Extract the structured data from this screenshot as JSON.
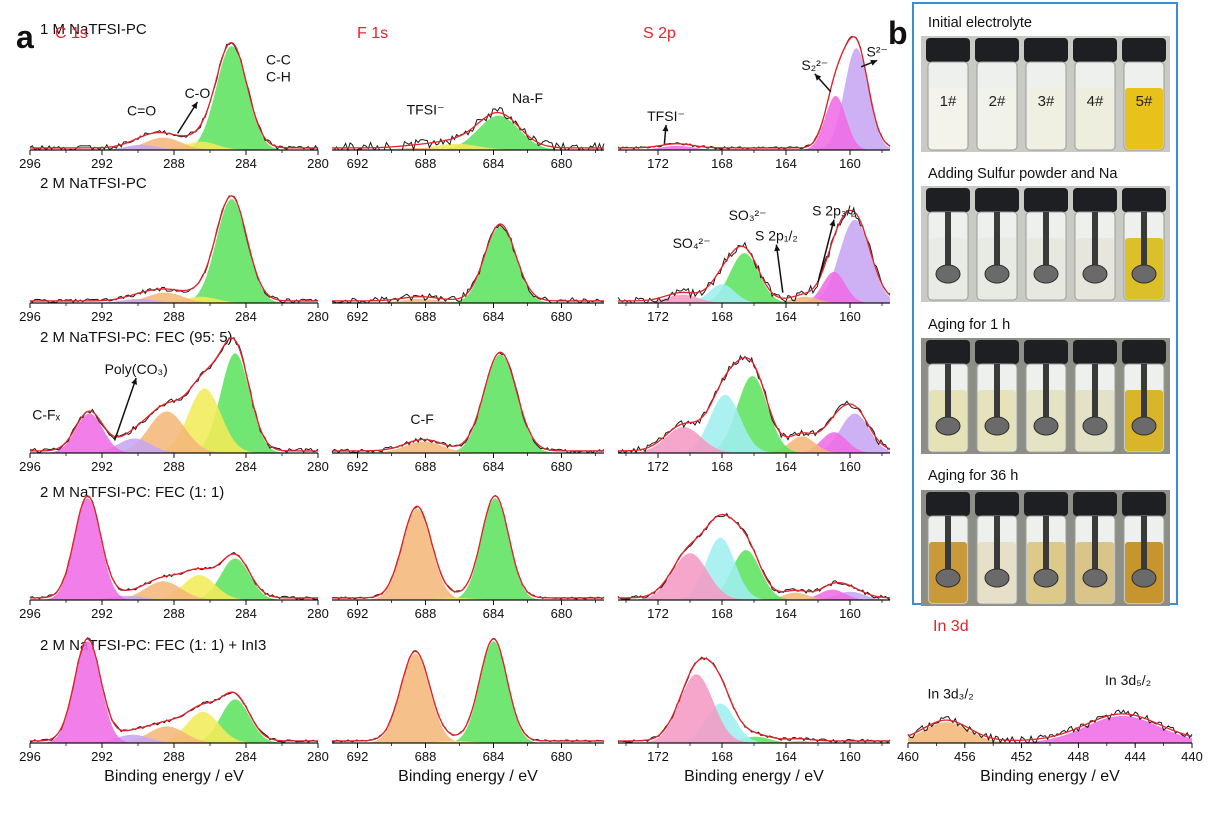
{
  "figure": {
    "label_a": "a",
    "label_b": "b",
    "xlabel": "Binding energy / eV",
    "colors": {
      "fit": "#e6232a",
      "raw": "#1a1a1a",
      "title": "#e6232a",
      "panel_b_border": "#3b8ed3"
    }
  },
  "rows": [
    {
      "name": "1 M NaTFSI-PC"
    },
    {
      "name": "2 M NaTFSI-PC"
    },
    {
      "name": "2 M NaTFSI-PC: FEC (95: 5)"
    },
    {
      "name": "2 M NaTFSI-PC: FEC (1: 1)"
    },
    {
      "name": "2 M NaTFSI-PC: FEC (1: 1) + InI3"
    }
  ],
  "chart_data": [
    {
      "type": "line",
      "title": "C 1s",
      "row": 0,
      "col": 0,
      "xlim": [
        296,
        280
      ],
      "xticks": [
        "296",
        "292",
        "288",
        "284",
        "280"
      ],
      "xlabel": "",
      "components": [
        {
          "center": 284.8,
          "height": 1.0,
          "width": 0.85,
          "color": "#5fe35f"
        },
        {
          "center": 286.5,
          "height": 0.08,
          "width": 0.9,
          "color": "#f2ec5a"
        },
        {
          "center": 288.6,
          "height": 0.12,
          "width": 1.0,
          "color": "#f5b77a"
        },
        {
          "center": 289.8,
          "height": 0.05,
          "width": 0.9,
          "color": "#c7a6f2"
        }
      ],
      "noise": 0.025,
      "annotations": [
        {
          "text": "C=O",
          "x": 289.8,
          "y": 0.33
        },
        {
          "text": "C-O",
          "x": 286.7,
          "y": 0.5,
          "arrow_to": [
            287.8,
            0.16
          ]
        },
        {
          "text": "C-C",
          "x": 282.2,
          "y": 0.82
        },
        {
          "text": "C-H",
          "x": 282.2,
          "y": 0.66
        }
      ]
    },
    {
      "type": "line",
      "title": "F 1s",
      "row": 0,
      "col": 1,
      "xlim": [
        693.5,
        677.5
      ],
      "xticks": [
        "692",
        "688",
        "684",
        "680"
      ],
      "xlabel": "",
      "components": [
        {
          "center": 683.7,
          "height": 0.33,
          "width": 1.2,
          "color": "#5fe35f"
        },
        {
          "center": 686.2,
          "height": 0.06,
          "width": 1.3,
          "color": "#f2ec5a"
        },
        {
          "center": 688.5,
          "height": 0.02,
          "width": 1.2,
          "color": "#f5b77a"
        }
      ],
      "noise": 0.05,
      "annotations": [
        {
          "text": "TFSI⁻",
          "x": 688.0,
          "y": 0.34
        },
        {
          "text": "Na-F",
          "x": 682.0,
          "y": 0.45
        }
      ]
    },
    {
      "type": "line",
      "title": "S 2p",
      "row": 0,
      "col": 2,
      "xlim": [
        174.5,
        157.5
      ],
      "xticks": [
        "172",
        "168",
        "164",
        "160"
      ],
      "xlabel": "",
      "components": [
        {
          "center": 159.6,
          "height": 0.98,
          "width": 0.75,
          "color": "#c7a6f2"
        },
        {
          "center": 160.9,
          "height": 0.52,
          "width": 0.65,
          "color": "#ef6ce6"
        },
        {
          "center": 170.8,
          "height": 0.04,
          "width": 1.0,
          "color": "#ef6ce6"
        }
      ],
      "noise": 0.012,
      "annotations": [
        {
          "text": "TFSI⁻",
          "x": 171.5,
          "y": 0.28,
          "arrow_to": [
            171.6,
            0.06
          ]
        },
        {
          "text": "S₂²⁻",
          "x": 162.2,
          "y": 0.77,
          "arrow_to": [
            161.2,
            0.56
          ]
        },
        {
          "text": "S²⁻",
          "x": 158.3,
          "y": 0.9,
          "arrow_to": [
            159.3,
            0.8
          ]
        }
      ]
    },
    {
      "type": "line",
      "title": "",
      "row": 1,
      "col": 0,
      "xlim": [
        296,
        280
      ],
      "xticks": [
        "296",
        "292",
        "288",
        "284",
        "280"
      ],
      "xlabel": "",
      "components": [
        {
          "center": 284.8,
          "height": 1.0,
          "width": 0.85,
          "color": "#5fe35f"
        },
        {
          "center": 286.5,
          "height": 0.06,
          "width": 0.9,
          "color": "#f2ec5a"
        },
        {
          "center": 288.5,
          "height": 0.1,
          "width": 1.0,
          "color": "#f5b77a"
        },
        {
          "center": 290.0,
          "height": 0.04,
          "width": 0.9,
          "color": "#c7a6f2"
        }
      ],
      "noise": 0.02,
      "annotations": []
    },
    {
      "type": "line",
      "title": "",
      "row": 1,
      "col": 1,
      "xlim": [
        693.5,
        677.5
      ],
      "xticks": [
        "692",
        "688",
        "684",
        "680"
      ],
      "xlabel": "",
      "components": [
        {
          "center": 683.6,
          "height": 0.74,
          "width": 0.9,
          "color": "#5fe35f"
        },
        {
          "center": 688.3,
          "height": 0.04,
          "width": 1.1,
          "color": "#f5b77a"
        }
      ],
      "noise": 0.035,
      "annotations": []
    },
    {
      "type": "line",
      "title": "",
      "row": 1,
      "col": 2,
      "xlim": [
        174.5,
        157.5
      ],
      "xticks": [
        "172",
        "168",
        "164",
        "160"
      ],
      "xlabel": "",
      "components": [
        {
          "center": 159.7,
          "height": 0.8,
          "width": 0.95,
          "color": "#c7a6f2"
        },
        {
          "center": 161.0,
          "height": 0.3,
          "width": 0.7,
          "color": "#ef6ce6"
        },
        {
          "center": 162.8,
          "height": 0.06,
          "width": 0.8,
          "color": "#f5b77a"
        },
        {
          "center": 166.6,
          "height": 0.48,
          "width": 0.9,
          "color": "#5fe35f"
        },
        {
          "center": 168.0,
          "height": 0.18,
          "width": 0.8,
          "color": "#9feff0"
        },
        {
          "center": 170.5,
          "height": 0.08,
          "width": 1.0,
          "color": "#f59ac4"
        }
      ],
      "noise": 0.045,
      "annotations": [
        {
          "text": "SO₄²⁻",
          "x": 169.9,
          "y": 0.53
        },
        {
          "text": "SO₃²⁻",
          "x": 166.4,
          "y": 0.8
        },
        {
          "text": "S 2p₁/₂",
          "x": 164.6,
          "y": 0.6,
          "arrow_to": [
            164.2,
            0.1
          ]
        },
        {
          "text": "S 2p₃/₂",
          "x": 161.0,
          "y": 0.84,
          "arrow_to": [
            162.0,
            0.2
          ]
        }
      ]
    },
    {
      "type": "line",
      "title": "",
      "row": 2,
      "col": 0,
      "xlim": [
        296,
        280
      ],
      "xticks": [
        "296",
        "292",
        "288",
        "284",
        "280"
      ],
      "xlabel": "",
      "components": [
        {
          "center": 284.6,
          "height": 0.96,
          "width": 0.8,
          "color": "#5fe35f"
        },
        {
          "center": 286.3,
          "height": 0.62,
          "width": 0.9,
          "color": "#f2ec5a"
        },
        {
          "center": 288.4,
          "height": 0.4,
          "width": 1.0,
          "color": "#f5b77a"
        },
        {
          "center": 290.2,
          "height": 0.14,
          "width": 0.9,
          "color": "#c7a6f2"
        },
        {
          "center": 292.7,
          "height": 0.38,
          "width": 0.75,
          "color": "#ef6ce6"
        }
      ],
      "noise": 0.025,
      "annotations": [
        {
          "text": "C-Fₓ",
          "x": 295.1,
          "y": 0.32
        },
        {
          "text": "Poly(CO₃)",
          "x": 290.1,
          "y": 0.76,
          "arrow_to": [
            291.3,
            0.12
          ]
        }
      ]
    },
    {
      "type": "line",
      "title": "",
      "row": 2,
      "col": 1,
      "xlim": [
        693.5,
        677.5
      ],
      "xticks": [
        "692",
        "688",
        "684",
        "680"
      ],
      "xlabel": "",
      "components": [
        {
          "center": 683.6,
          "height": 0.95,
          "width": 0.95,
          "color": "#5fe35f"
        },
        {
          "center": 688.1,
          "height": 0.11,
          "width": 1.1,
          "color": "#f5b77a"
        }
      ],
      "noise": 0.02,
      "annotations": [
        {
          "text": "C-F",
          "x": 688.2,
          "y": 0.28
        }
      ]
    },
    {
      "type": "line",
      "title": "",
      "row": 2,
      "col": 2,
      "xlim": [
        174.5,
        157.5
      ],
      "xticks": [
        "172",
        "168",
        "164",
        "160"
      ],
      "xlabel": "",
      "components": [
        {
          "center": 159.7,
          "height": 0.38,
          "width": 0.9,
          "color": "#c7a6f2"
        },
        {
          "center": 161.0,
          "height": 0.2,
          "width": 0.8,
          "color": "#ef6ce6"
        },
        {
          "center": 163.0,
          "height": 0.16,
          "width": 0.8,
          "color": "#f5b77a"
        },
        {
          "center": 166.1,
          "height": 0.74,
          "width": 0.95,
          "color": "#5fe35f"
        },
        {
          "center": 167.8,
          "height": 0.56,
          "width": 0.95,
          "color": "#9feff0"
        },
        {
          "center": 170.4,
          "height": 0.25,
          "width": 1.1,
          "color": "#f59ac4"
        }
      ],
      "noise": 0.035,
      "annotations": []
    },
    {
      "type": "line",
      "title": "",
      "row": 3,
      "col": 0,
      "xlim": [
        296,
        280
      ],
      "xticks": [
        "296",
        "292",
        "288",
        "284",
        "280"
      ],
      "xlabel": "",
      "components": [
        {
          "center": 284.6,
          "height": 0.4,
          "width": 0.8,
          "color": "#5fe35f"
        },
        {
          "center": 286.6,
          "height": 0.24,
          "width": 0.9,
          "color": "#f2ec5a"
        },
        {
          "center": 288.6,
          "height": 0.18,
          "width": 1.0,
          "color": "#f5b77a"
        },
        {
          "center": 290.6,
          "height": 0.04,
          "width": 0.9,
          "color": "#c7a6f2"
        },
        {
          "center": 292.8,
          "height": 0.98,
          "width": 0.72,
          "color": "#ef6ce6"
        }
      ],
      "noise": 0.015,
      "annotations": []
    },
    {
      "type": "line",
      "title": "",
      "row": 3,
      "col": 1,
      "xlim": [
        693.5,
        677.5
      ],
      "xticks": [
        "692",
        "688",
        "684",
        "680"
      ],
      "xlabel": "",
      "components": [
        {
          "center": 683.9,
          "height": 0.98,
          "width": 0.8,
          "color": "#5fe35f"
        },
        {
          "center": 688.5,
          "height": 0.88,
          "width": 0.85,
          "color": "#f5b77a"
        },
        {
          "center": 686.2,
          "height": 0.02,
          "width": 1.0,
          "color": "#f2ec5a"
        }
      ],
      "noise": 0.01,
      "annotations": []
    },
    {
      "type": "line",
      "title": "",
      "row": 3,
      "col": 2,
      "xlim": [
        174.5,
        157.5
      ],
      "xticks": [
        "172",
        "168",
        "164",
        "160"
      ],
      "xlabel": "",
      "components": [
        {
          "center": 160.0,
          "height": 0.08,
          "width": 0.9,
          "color": "#c7a6f2"
        },
        {
          "center": 161.1,
          "height": 0.1,
          "width": 0.8,
          "color": "#ef6ce6"
        },
        {
          "center": 163.4,
          "height": 0.07,
          "width": 0.8,
          "color": "#f5b77a"
        },
        {
          "center": 166.5,
          "height": 0.48,
          "width": 0.9,
          "color": "#5fe35f"
        },
        {
          "center": 168.1,
          "height": 0.6,
          "width": 0.9,
          "color": "#9feff0"
        },
        {
          "center": 170.0,
          "height": 0.45,
          "width": 1.1,
          "color": "#f59ac4"
        }
      ],
      "noise": 0.02,
      "annotations": []
    },
    {
      "type": "line",
      "title": "",
      "row": 4,
      "col": 0,
      "xlim": [
        296,
        280
      ],
      "xticks": [
        "296",
        "292",
        "288",
        "284",
        "280"
      ],
      "xlabel": "Binding energy / eV",
      "components": [
        {
          "center": 284.6,
          "height": 0.42,
          "width": 0.8,
          "color": "#5fe35f"
        },
        {
          "center": 286.4,
          "height": 0.3,
          "width": 0.9,
          "color": "#f2ec5a"
        },
        {
          "center": 288.4,
          "height": 0.16,
          "width": 1.0,
          "color": "#f5b77a"
        },
        {
          "center": 290.3,
          "height": 0.08,
          "width": 0.9,
          "color": "#c7a6f2"
        },
        {
          "center": 292.8,
          "height": 0.98,
          "width": 0.72,
          "color": "#ef6ce6"
        }
      ],
      "noise": 0.015,
      "annotations": []
    },
    {
      "type": "line",
      "title": "",
      "row": 4,
      "col": 1,
      "xlim": [
        693.5,
        677.5
      ],
      "xticks": [
        "692",
        "688",
        "684",
        "680"
      ],
      "xlabel": "Binding energy / eV",
      "components": [
        {
          "center": 684.0,
          "height": 0.98,
          "width": 0.8,
          "color": "#5fe35f"
        },
        {
          "center": 688.6,
          "height": 0.86,
          "width": 0.85,
          "color": "#f5b77a"
        },
        {
          "center": 686.3,
          "height": 0.02,
          "width": 1.0,
          "color": "#f2ec5a"
        }
      ],
      "noise": 0.01,
      "annotations": []
    },
    {
      "type": "line",
      "title": "",
      "row": 4,
      "col": 2,
      "xlim": [
        174.5,
        157.5
      ],
      "xticks": [
        "172",
        "168",
        "164",
        "160"
      ],
      "xlabel": "Binding energy / eV",
      "components": [
        {
          "center": 165.9,
          "height": 0.06,
          "width": 0.9,
          "color": "#5fe35f"
        },
        {
          "center": 168.1,
          "height": 0.38,
          "width": 0.9,
          "color": "#9feff0"
        },
        {
          "center": 169.6,
          "height": 0.66,
          "width": 1.05,
          "color": "#f59ac4"
        },
        {
          "center": 163.2,
          "height": 0.02,
          "width": 0.8,
          "color": "#f5b77a"
        }
      ],
      "noise": 0.015,
      "annotations": []
    },
    {
      "type": "line",
      "title": "In 3d",
      "row": 4,
      "col": 3,
      "xlim": [
        460,
        440
      ],
      "xticks": [
        "460",
        "456",
        "452",
        "448",
        "444",
        "440"
      ],
      "xlabel": "Binding energy / eV",
      "components": [
        {
          "center": 457.3,
          "height": 0.2,
          "width": 1.6,
          "color": "#f5b77a"
        },
        {
          "center": 444.9,
          "height": 0.26,
          "width": 2.6,
          "color": "#ef6ce6"
        }
      ],
      "noise": 0.04,
      "annotations": [
        {
          "text": "In 3d₃/₂",
          "x": 457.0,
          "y": 0.43
        },
        {
          "text": "In 3d₅/₂",
          "x": 444.5,
          "y": 0.56
        }
      ]
    }
  ],
  "photos": [
    {
      "title": "Initial electrolyte",
      "vials": [
        {
          "label": "1#",
          "liquid": "#f3f3ec"
        },
        {
          "label": "2#",
          "liquid": "#f1f2ea"
        },
        {
          "label": "3#",
          "liquid": "#f0f0e2"
        },
        {
          "label": "4#",
          "liquid": "#eeeede"
        },
        {
          "label": "5#",
          "liquid": "#e8c21a"
        }
      ],
      "rods": false
    },
    {
      "title": "Adding Sulfur powder and Na",
      "vials": [
        {
          "label": "",
          "liquid": "#e9ebe6"
        },
        {
          "label": "",
          "liquid": "#e8eae4"
        },
        {
          "label": "",
          "liquid": "#e7e8e0"
        },
        {
          "label": "",
          "liquid": "#e6e6dc"
        },
        {
          "label": "",
          "liquid": "#dcc02a"
        }
      ],
      "rods": true
    },
    {
      "title": "Aging for 1 h",
      "vials": [
        {
          "label": "",
          "liquid": "#e6e2b8"
        },
        {
          "label": "",
          "liquid": "#e6e3bc"
        },
        {
          "label": "",
          "liquid": "#e4e3c4"
        },
        {
          "label": "",
          "liquid": "#e3e2c6"
        },
        {
          "label": "",
          "liquid": "#d9b52a"
        }
      ],
      "rods": true
    },
    {
      "title": "Aging for 36 h",
      "vials": [
        {
          "label": "",
          "liquid": "#c99a3a"
        },
        {
          "label": "",
          "liquid": "#e6e0c8"
        },
        {
          "label": "",
          "liquid": "#ddc98a"
        },
        {
          "label": "",
          "liquid": "#d9c489"
        },
        {
          "label": "",
          "liquid": "#c7952e"
        }
      ],
      "rods": true
    }
  ]
}
